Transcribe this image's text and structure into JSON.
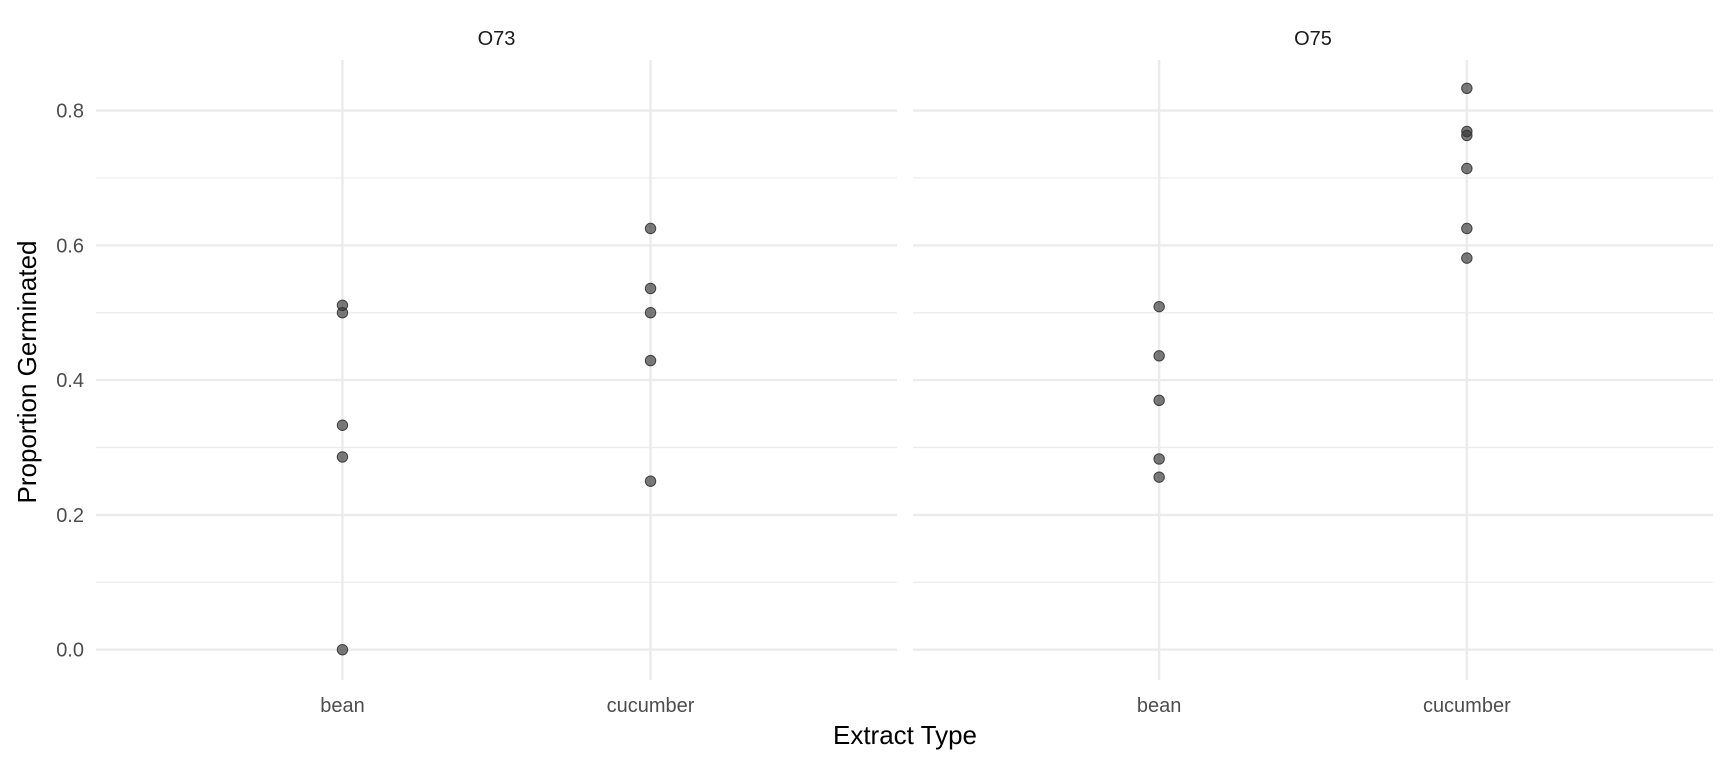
{
  "chart_data": {
    "type": "scatter",
    "xlabel": "Extract Type",
    "ylabel": "Proportion Germinated",
    "categories": [
      "bean",
      "cucumber"
    ],
    "ylim": [
      -0.045,
      0.875
    ],
    "y_ticks": [
      "0.0",
      "0.2",
      "0.4",
      "0.6",
      "0.8"
    ],
    "grid": true,
    "point_color": "#333333",
    "panels": [
      {
        "name": "O73",
        "points": [
          {
            "x": "bean",
            "y": 0.511
          },
          {
            "x": "bean",
            "y": 0.5
          },
          {
            "x": "bean",
            "y": 0.333
          },
          {
            "x": "bean",
            "y": 0.286
          },
          {
            "x": "bean",
            "y": 0.0
          },
          {
            "x": "cucumber",
            "y": 0.625
          },
          {
            "x": "cucumber",
            "y": 0.536
          },
          {
            "x": "cucumber",
            "y": 0.5
          },
          {
            "x": "cucumber",
            "y": 0.429
          },
          {
            "x": "cucumber",
            "y": 0.25
          }
        ]
      },
      {
        "name": "O75",
        "points": [
          {
            "x": "bean",
            "y": 0.509
          },
          {
            "x": "bean",
            "y": 0.436
          },
          {
            "x": "bean",
            "y": 0.37
          },
          {
            "x": "bean",
            "y": 0.283
          },
          {
            "x": "bean",
            "y": 0.256
          },
          {
            "x": "cucumber",
            "y": 0.833
          },
          {
            "x": "cucumber",
            "y": 0.769
          },
          {
            "x": "cucumber",
            "y": 0.763
          },
          {
            "x": "cucumber",
            "y": 0.714
          },
          {
            "x": "cucumber",
            "y": 0.625
          },
          {
            "x": "cucumber",
            "y": 0.581
          }
        ]
      }
    ]
  }
}
